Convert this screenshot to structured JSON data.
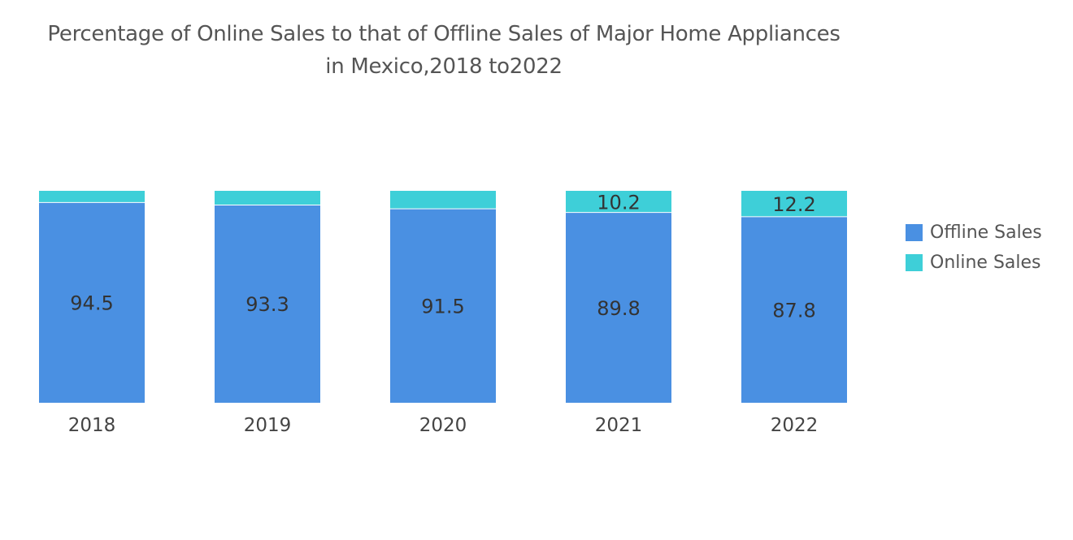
{
  "chart_data": {
    "type": "bar",
    "stacked": true,
    "title": "Percentage of Online Sales to that of Offline Sales of Major Home Appliances",
    "subtitle": "in Mexico,2018 to2022",
    "categories": [
      "2018",
      "2019",
      "2020",
      "2021",
      "2022"
    ],
    "series": [
      {
        "name": "Offline Sales",
        "color": "#4a90e2",
        "values": [
          94.5,
          93.3,
          91.5,
          89.8,
          87.8
        ],
        "labels": [
          "94.5",
          "93.3",
          "91.5",
          "89.8",
          "87.8"
        ]
      },
      {
        "name": "Online Sales",
        "color": "#3ecfd8",
        "values": [
          5.5,
          6.7,
          8.5,
          10.2,
          12.2
        ],
        "labels": [
          "",
          "",
          "",
          "10.2",
          "12.2"
        ]
      }
    ],
    "ylim": [
      0,
      100
    ],
    "grid": false,
    "legend_position": "right"
  }
}
